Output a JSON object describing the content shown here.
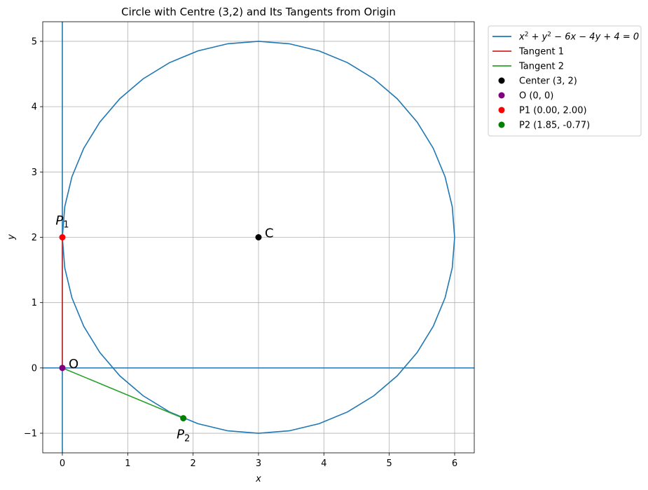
{
  "chart_data": {
    "type": "line",
    "title": "Circle with Centre (3,2) and Its Tangents from Origin",
    "xlabel": "x",
    "ylabel": "y",
    "xlim": [
      -0.3,
      6.3
    ],
    "ylim": [
      -1.3,
      5.3
    ],
    "xticks": [
      0,
      1,
      2,
      3,
      4,
      5,
      6
    ],
    "yticks": [
      -1,
      0,
      1,
      2,
      3,
      4,
      5
    ],
    "grid": true,
    "legend_placement": "outside-top-right",
    "circle": {
      "cx": 3,
      "cy": 2,
      "r": 3,
      "color": "#1f77b4",
      "name_base": "x",
      "segments": 40
    },
    "reference_lines": [
      {
        "kind": "horizontal",
        "y": 0,
        "color": "#1f77b4"
      },
      {
        "kind": "vertical",
        "x": 0,
        "color": "#1f77b4"
      }
    ],
    "series": [
      {
        "name": "Tangent 1",
        "color": "#d62728",
        "x": [
          0,
          0
        ],
        "y": [
          0,
          2
        ]
      },
      {
        "name": "Tangent 2",
        "color": "#2ca02c",
        "x": [
          0,
          1.85
        ],
        "y": [
          0,
          -0.77
        ]
      }
    ],
    "points": [
      {
        "name": "Center (3, 2)",
        "x": 3,
        "y": 2,
        "color": "#000000"
      },
      {
        "name": "O (0, 0)",
        "x": 0,
        "y": 0,
        "color": "#800080"
      },
      {
        "name": "P1 (0.00, 2.00)",
        "x": 0,
        "y": 2,
        "color": "#ff0000"
      },
      {
        "name": "P2 (1.85, -0.77)",
        "x": 1.85,
        "y": -0.77,
        "color": "#008000"
      }
    ],
    "annotations": [
      {
        "text": "C",
        "x": 3,
        "y": 2,
        "anchor": "right"
      },
      {
        "text": "O",
        "x": 0,
        "y": 0,
        "anchor": "right"
      },
      {
        "text": "P",
        "sub": "1",
        "x": 0,
        "y": 2,
        "anchor": "above"
      },
      {
        "text": "P",
        "sub": "2",
        "x": 1.85,
        "y": -0.77,
        "anchor": "below"
      }
    ],
    "legend": [
      {
        "kind": "line",
        "color": "#1f77b4",
        "label_parts": [
          "x",
          "2",
          " + y",
          "2",
          " − 6x − 4y + 4 = 0"
        ]
      },
      {
        "kind": "line",
        "color": "#d62728",
        "label": "Tangent 1"
      },
      {
        "kind": "line",
        "color": "#2ca02c",
        "label": "Tangent 2"
      },
      {
        "kind": "marker",
        "color": "#000000",
        "label": "Center (3, 2)"
      },
      {
        "kind": "marker",
        "color": "#800080",
        "label": "O (0, 0)"
      },
      {
        "kind": "marker",
        "color": "#ff0000",
        "label": "P1 (0.00, 2.00)"
      },
      {
        "kind": "marker",
        "color": "#008000",
        "label": "P2 (1.85, -0.77)"
      }
    ]
  }
}
